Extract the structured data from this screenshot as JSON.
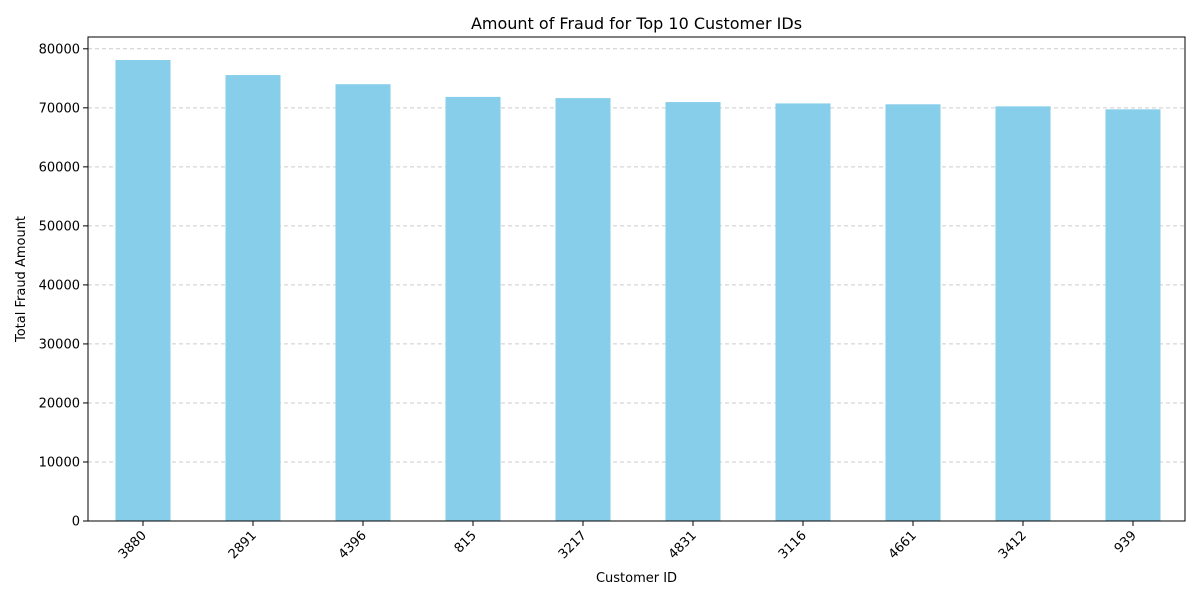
{
  "chart_data": {
    "type": "bar",
    "title": "Amount of Fraud for Top 10 Customer IDs",
    "xlabel": "Customer ID",
    "ylabel": "Total Fraud Amount",
    "categories": [
      "3880",
      "2891",
      "4396",
      "815",
      "3217",
      "4831",
      "3116",
      "4661",
      "3412",
      "939"
    ],
    "values": [
      78100,
      75550,
      74000,
      71850,
      71650,
      70980,
      70750,
      70600,
      70250,
      69750
    ],
    "ylim": [
      0,
      82000
    ],
    "yticks": [
      0,
      10000,
      20000,
      30000,
      40000,
      50000,
      60000,
      70000,
      80000
    ],
    "ytick_labels": [
      "0",
      "10000",
      "20000",
      "30000",
      "40000",
      "50000",
      "60000",
      "70000",
      "80000"
    ],
    "grid": "horizontal dashed",
    "bar_color": "#87ceeb",
    "xtick_rotation": "45 degrees"
  }
}
